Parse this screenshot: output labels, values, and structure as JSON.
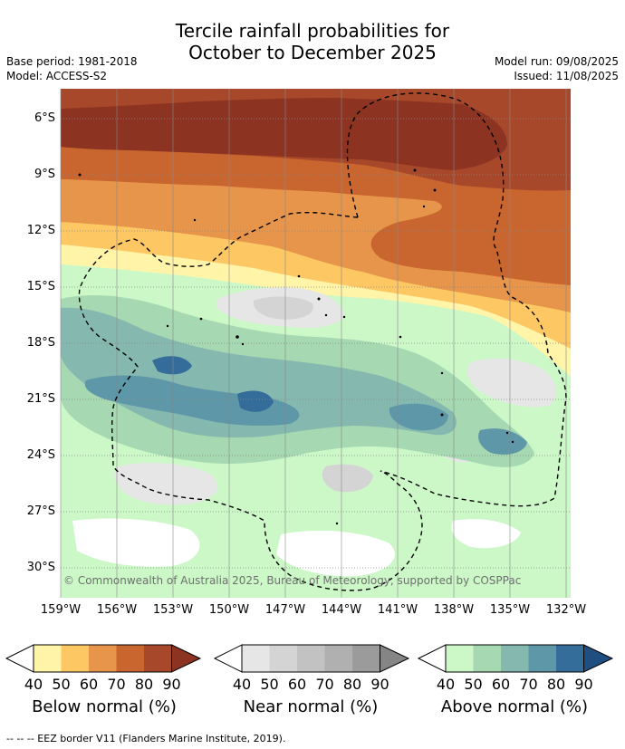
{
  "title_line1": "Tercile rainfall probabilities for",
  "title_line2": "October to December 2025",
  "base_period": "Base period: 1981-2018",
  "model": "Model: ACCESS-S2",
  "model_run": "Model run: 09/08/2025",
  "issued": "Issued: 11/08/2025",
  "lat_labels": [
    "6°S",
    "9°S",
    "12°S",
    "15°S",
    "18°S",
    "21°S",
    "24°S",
    "27°S",
    "30°S"
  ],
  "lon_labels": [
    "159°W",
    "156°W",
    "153°W",
    "150°W",
    "147°W",
    "144°W",
    "141°W",
    "138°W",
    "135°W",
    "132°W"
  ],
  "copyright": "© Commonwealth of Australia 2025, Bureau of Meteorology, supported by COSPPac",
  "colorbars": [
    {
      "title": "Below normal (%)",
      "ticks": [
        "40",
        "50",
        "60",
        "70",
        "80",
        "90"
      ],
      "colors": [
        "#fff4a8",
        "#fdc864",
        "#e6954a",
        "#c9652f",
        "#a8482a",
        "#8c3421"
      ]
    },
    {
      "title": "Near normal (%)",
      "ticks": [
        "40",
        "50",
        "60",
        "70",
        "80",
        "90"
      ],
      "colors": [
        "#e6e6e6",
        "#d4d4d4",
        "#c2c2c2",
        "#b0b0b0",
        "#9b9b9b",
        "#858585"
      ]
    },
    {
      "title": "Above normal (%)",
      "ticks": [
        "40",
        "50",
        "60",
        "70",
        "80",
        "90"
      ],
      "colors": [
        "#ccf8c8",
        "#a6d8b2",
        "#85b8ae",
        "#5e97a8",
        "#346d9a",
        "#1f4f80"
      ]
    }
  ],
  "footer": "-- -- -- EEZ border V11 (Flanders Marine Institute, 2019)."
}
